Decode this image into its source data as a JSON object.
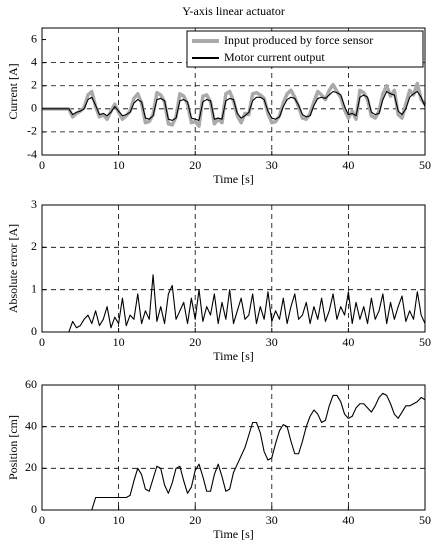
{
  "chart_data": [
    {
      "type": "line",
      "title": "Y-axis linear actuator",
      "xlabel": "Time [s]",
      "ylabel": "Current [A]",
      "x": [
        0,
        0.5,
        1,
        1.5,
        2,
        2.5,
        3,
        3.5,
        4,
        4.5,
        5,
        5.5,
        6,
        6.5,
        7,
        7.5,
        8,
        8.5,
        9,
        9.5,
        10,
        10.5,
        11,
        11.5,
        12,
        12.5,
        13,
        13.5,
        14,
        14.5,
        15,
        15.5,
        16,
        16.5,
        17,
        17.5,
        18,
        18.5,
        19,
        19.5,
        20,
        20.5,
        21,
        21.5,
        22,
        22.5,
        23,
        23.5,
        24,
        24.5,
        25,
        25.5,
        26,
        26.5,
        27,
        27.5,
        28,
        28.5,
        29,
        29.5,
        30,
        30.5,
        31,
        31.5,
        32,
        32.5,
        33,
        33.5,
        34,
        34.5,
        35,
        35.5,
        36,
        36.5,
        37,
        37.5,
        38,
        38.5,
        39,
        39.5,
        40,
        40.5,
        41,
        41.5,
        42,
        42.5,
        43,
        43.5,
        44,
        44.5,
        45,
        45.5,
        46,
        46.5,
        47,
        47.5,
        48,
        48.5,
        49,
        49.5,
        50
      ],
      "series": [
        {
          "name": "Input produced by force sensor",
          "color": "#aaaaaa",
          "values": [
            0,
            0,
            0,
            0,
            0,
            0,
            0,
            0,
            -0.7,
            -0.4,
            -0.2,
            0.1,
            1.2,
            1.5,
            0.2,
            -0.7,
            -0.5,
            -0.9,
            -0.2,
            0.4,
            -0.3,
            -0.9,
            -0.6,
            -0.2,
            0.9,
            1.3,
            0.5,
            -1.2,
            -1.1,
            -0.5,
            1.4,
            1.2,
            0.6,
            -1.3,
            -1.4,
            -0.7,
            1.3,
            1.1,
            0.4,
            -1.2,
            -1.1,
            -1.5,
            1.1,
            1.2,
            0.6,
            -1.3,
            -0.9,
            -1.2,
            1.3,
            1.5,
            0.7,
            -0.6,
            -1.2,
            -0.4,
            -0.5,
            1.3,
            1.4,
            1.2,
            0.9,
            -0.4,
            -1.2,
            -1.1,
            -0.6,
            0.5,
            1.3,
            1.6,
            1.0,
            0.2,
            -0.8,
            -0.9,
            -0.4,
            0.6,
            1.5,
            1.2,
            0.8,
            1.6,
            2.1,
            1.5,
            1.0,
            -0.1,
            -0.8,
            -0.2,
            -0.9,
            1.6,
            1.4,
            0.8,
            -0.6,
            -0.8,
            -0.2,
            1.3,
            2.0,
            1.1,
            1.6,
            -0.5,
            -0.8,
            0.4,
            1.6,
            1.2,
            2.2,
            0.8,
            0.4
          ]
        },
        {
          "name": "Motor current output",
          "color": "#000000",
          "values": [
            0,
            0,
            0,
            0,
            0,
            0,
            0,
            0,
            -0.5,
            -0.3,
            -0.2,
            0,
            0.8,
            1.0,
            0.3,
            -0.5,
            -0.4,
            -0.6,
            -0.3,
            0.2,
            -0.2,
            -0.6,
            -0.5,
            -0.3,
            0.5,
            0.8,
            0.6,
            -0.8,
            -0.9,
            -0.6,
            0.8,
            0.9,
            0.7,
            -0.9,
            -1.0,
            -0.8,
            0.7,
            0.8,
            0.6,
            -0.8,
            -0.9,
            -1.0,
            0.6,
            0.8,
            0.7,
            -0.9,
            -0.8,
            -0.9,
            0.7,
            0.9,
            0.8,
            -0.4,
            -0.8,
            -0.6,
            -0.3,
            0.7,
            1.0,
            1.0,
            0.8,
            -0.2,
            -0.8,
            -0.9,
            -0.7,
            0.2,
            0.8,
            1.0,
            0.9,
            0.3,
            -0.5,
            -0.7,
            -0.6,
            0.3,
            0.9,
            1.0,
            0.9,
            1.2,
            1.5,
            1.4,
            1.2,
            0.2,
            -0.5,
            -0.4,
            -0.6,
            1.0,
            1.2,
            1.0,
            -0.3,
            -0.5,
            -0.4,
            0.8,
            1.5,
            1.3,
            1.2,
            -0.2,
            -0.5,
            0,
            1.0,
            1.3,
            1.5,
            1.0,
            0.2
          ]
        }
      ],
      "xlim": [
        0,
        50
      ],
      "xticks": [
        0,
        10,
        20,
        30,
        40,
        50
      ],
      "ylim": [
        -4,
        7
      ],
      "yticks": [
        -4,
        -2,
        0,
        2,
        4,
        6
      ],
      "grid": true,
      "legend": "upper right"
    },
    {
      "type": "line",
      "xlabel": "Time [s]",
      "ylabel": "Absolute error [A]",
      "x": [
        0,
        0.5,
        1,
        1.5,
        2,
        2.5,
        3,
        3.5,
        4,
        4.5,
        5,
        5.5,
        6,
        6.5,
        7,
        7.5,
        8,
        8.5,
        9,
        9.5,
        10,
        10.5,
        11,
        11.5,
        12,
        12.5,
        13,
        13.5,
        14,
        14.5,
        15,
        15.5,
        16,
        16.5,
        17,
        17.5,
        18,
        18.5,
        19,
        19.5,
        20,
        20.5,
        21,
        21.5,
        22,
        22.5,
        23,
        23.5,
        24,
        24.5,
        25,
        25.5,
        26,
        26.5,
        27,
        27.5,
        28,
        28.5,
        29,
        29.5,
        30,
        30.5,
        31,
        31.5,
        32,
        32.5,
        33,
        33.5,
        34,
        34.5,
        35,
        35.5,
        36,
        36.5,
        37,
        37.5,
        38,
        38.5,
        39,
        39.5,
        40,
        40.5,
        41,
        41.5,
        42,
        42.5,
        43,
        43.5,
        44,
        44.5,
        45,
        45.5,
        46,
        46.5,
        47,
        47.5,
        48,
        48.5,
        49,
        49.5,
        50
      ],
      "series": [
        {
          "name": "Absolute error",
          "color": "#000000",
          "values": [
            0,
            0,
            0,
            0,
            0,
            0,
            0,
            0,
            0.25,
            0.1,
            0.15,
            0.3,
            0.4,
            0.2,
            0.5,
            0.15,
            0.3,
            0.6,
            0.1,
            0.35,
            0.2,
            0.8,
            0.15,
            0.4,
            0.3,
            0.9,
            0.2,
            0.5,
            0.3,
            1.35,
            0.25,
            0.6,
            0.2,
            0.9,
            1.1,
            0.3,
            0.5,
            0.7,
            0.2,
            0.8,
            0.3,
            1.0,
            0.25,
            0.6,
            0.4,
            0.9,
            0.2,
            0.7,
            0.3,
            1.0,
            0.2,
            0.5,
            0.8,
            0.3,
            0.4,
            0.9,
            0.2,
            0.6,
            0.3,
            0.95,
            0.25,
            0.5,
            0.3,
            0.8,
            0.2,
            0.6,
            0.9,
            0.3,
            0.4,
            0.7,
            0.2,
            0.6,
            0.3,
            0.8,
            0.25,
            0.5,
            0.9,
            0.3,
            0.6,
            0.4,
            0.95,
            0.2,
            0.7,
            0.3,
            0.6,
            0.2,
            0.8,
            0.3,
            0.5,
            0.9,
            0.2,
            0.7,
            0.3,
            0.6,
            0.85,
            0.25,
            0.5,
            0.3,
            0.95,
            0.4,
            0.2
          ]
        }
      ],
      "xlim": [
        0,
        50
      ],
      "xticks": [
        0,
        10,
        20,
        30,
        40,
        50
      ],
      "ylim": [
        0,
        3
      ],
      "yticks": [
        0,
        1,
        2,
        3
      ],
      "grid": true
    },
    {
      "type": "line",
      "xlabel": "Time [s]",
      "ylabel": "Position [cm]",
      "x": [
        0,
        0.5,
        1,
        1.5,
        2,
        2.5,
        3,
        3.5,
        4,
        4.5,
        5,
        5.5,
        6,
        6.5,
        7,
        7.5,
        8,
        8.5,
        9,
        9.5,
        10,
        10.5,
        11,
        11.5,
        12,
        12.5,
        13,
        13.5,
        14,
        14.5,
        15,
        15.5,
        16,
        16.5,
        17,
        17.5,
        18,
        18.5,
        19,
        19.5,
        20,
        20.5,
        21,
        21.5,
        22,
        22.5,
        23,
        23.5,
        24,
        24.5,
        25,
        25.5,
        26,
        26.5,
        27,
        27.5,
        28,
        28.5,
        29,
        29.5,
        30,
        30.5,
        31,
        31.5,
        32,
        32.5,
        33,
        33.5,
        34,
        34.5,
        35,
        35.5,
        36,
        36.5,
        37,
        37.5,
        38,
        38.5,
        39,
        39.5,
        40,
        40.5,
        41,
        41.5,
        42,
        42.5,
        43,
        43.5,
        44,
        44.5,
        45,
        45.5,
        46,
        46.5,
        47,
        47.5,
        48,
        48.5,
        49,
        49.5,
        50
      ],
      "series": [
        {
          "name": "Position",
          "color": "#000000",
          "values": [
            0,
            0,
            0,
            0,
            0,
            0,
            0,
            0,
            0,
            0,
            0,
            0,
            0,
            0,
            6,
            6,
            6,
            6,
            6,
            6,
            6,
            6,
            6,
            7,
            14,
            20,
            17,
            10,
            9,
            15,
            21,
            20,
            12,
            8,
            13,
            20,
            21,
            14,
            8,
            11,
            19,
            22,
            16,
            9,
            9,
            17,
            22,
            16,
            9,
            10,
            18,
            22,
            26,
            30,
            36,
            42,
            42,
            37,
            28,
            24,
            25,
            32,
            38,
            41,
            40,
            33,
            27,
            27,
            33,
            40,
            45,
            48,
            46,
            42,
            43,
            50,
            55,
            55,
            52,
            46,
            44,
            45,
            49,
            51,
            51,
            49,
            47,
            50,
            54,
            56,
            55,
            51,
            46,
            44,
            47,
            50,
            50,
            51,
            52,
            54,
            53
          ]
        }
      ],
      "xlim": [
        0,
        50
      ],
      "xticks": [
        0,
        10,
        20,
        30,
        40,
        50
      ],
      "ylim": [
        0,
        60
      ],
      "yticks": [
        0,
        20,
        40,
        60
      ],
      "grid": true
    }
  ]
}
